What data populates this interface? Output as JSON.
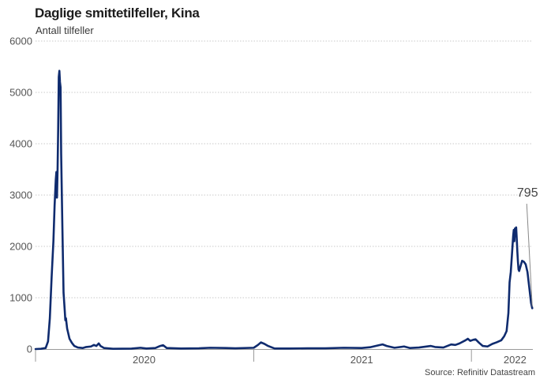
{
  "chart_data": {
    "type": "line",
    "title": "Daglige smittetilfeller, Kina",
    "subtitle": "Antall tilfeller",
    "source": "Source: Refinitiv Datastream",
    "ylim": [
      0,
      6000
    ],
    "yticks": [
      "0",
      "1000",
      "2000",
      "3000",
      "4000",
      "5000",
      "6000"
    ],
    "xticks": [
      {
        "date": "2020-01-01",
        "label": "",
        "major": true
      },
      {
        "date": "2020-07-01",
        "label": "2020",
        "major": false
      },
      {
        "date": "2021-01-01",
        "label": "",
        "major": true
      },
      {
        "date": "2021-07-01",
        "label": "2021",
        "major": false
      },
      {
        "date": "2022-01-01",
        "label": "",
        "major": true
      },
      {
        "date": "2022-03-15",
        "label": "2022",
        "major": false
      }
    ],
    "xlim": [
      "2020-01-01",
      "2022-04-14"
    ],
    "grid": true,
    "line_color": "#0f2b6e",
    "annotation": {
      "date": "2022-04-13",
      "value": 795,
      "label": "795"
    },
    "series": [
      {
        "points": [
          [
            "2020-01-01",
            0
          ],
          [
            "2020-01-10",
            5
          ],
          [
            "2020-01-18",
            20
          ],
          [
            "2020-01-22",
            150
          ],
          [
            "2020-01-25",
            600
          ],
          [
            "2020-01-28",
            1400
          ],
          [
            "2020-01-31",
            2100
          ],
          [
            "2020-02-02",
            2800
          ],
          [
            "2020-02-04",
            3300
          ],
          [
            "2020-02-05",
            3450
          ],
          [
            "2020-02-06",
            2950
          ],
          [
            "2020-02-07",
            3500
          ],
          [
            "2020-02-08",
            4300
          ],
          [
            "2020-02-09",
            5300
          ],
          [
            "2020-02-10",
            5420
          ],
          [
            "2020-02-11",
            5200
          ],
          [
            "2020-02-12",
            5100
          ],
          [
            "2020-02-13",
            3800
          ],
          [
            "2020-02-15",
            2400
          ],
          [
            "2020-02-17",
            1100
          ],
          [
            "2020-02-19",
            750
          ],
          [
            "2020-02-20",
            560
          ],
          [
            "2020-02-21",
            600
          ],
          [
            "2020-02-23",
            400
          ],
          [
            "2020-02-25",
            300
          ],
          [
            "2020-02-27",
            200
          ],
          [
            "2020-03-02",
            120
          ],
          [
            "2020-03-06",
            60
          ],
          [
            "2020-03-12",
            30
          ],
          [
            "2020-03-20",
            20
          ],
          [
            "2020-03-26",
            40
          ],
          [
            "2020-04-03",
            50
          ],
          [
            "2020-04-08",
            80
          ],
          [
            "2020-04-12",
            60
          ],
          [
            "2020-04-16",
            110
          ],
          [
            "2020-04-19",
            60
          ],
          [
            "2020-04-25",
            20
          ],
          [
            "2020-05-10",
            5
          ],
          [
            "2020-06-10",
            8
          ],
          [
            "2020-06-25",
            25
          ],
          [
            "2020-07-05",
            10
          ],
          [
            "2020-07-20",
            20
          ],
          [
            "2020-07-28",
            60
          ],
          [
            "2020-08-02",
            75
          ],
          [
            "2020-08-08",
            20
          ],
          [
            "2020-09-01",
            10
          ],
          [
            "2020-10-01",
            15
          ],
          [
            "2020-10-20",
            25
          ],
          [
            "2020-11-15",
            20
          ],
          [
            "2020-12-01",
            15
          ],
          [
            "2021-01-01",
            25
          ],
          [
            "2021-01-08",
            80
          ],
          [
            "2021-01-13",
            130
          ],
          [
            "2021-01-19",
            100
          ],
          [
            "2021-01-25",
            60
          ],
          [
            "2021-02-05",
            10
          ],
          [
            "2021-03-01",
            10
          ],
          [
            "2021-04-01",
            15
          ],
          [
            "2021-05-01",
            15
          ],
          [
            "2021-06-01",
            25
          ],
          [
            "2021-07-01",
            20
          ],
          [
            "2021-07-15",
            35
          ],
          [
            "2021-07-30",
            75
          ],
          [
            "2021-08-05",
            90
          ],
          [
            "2021-08-12",
            60
          ],
          [
            "2021-08-25",
            25
          ],
          [
            "2021-09-10",
            50
          ],
          [
            "2021-09-20",
            20
          ],
          [
            "2021-10-05",
            30
          ],
          [
            "2021-10-25",
            60
          ],
          [
            "2021-11-01",
            40
          ],
          [
            "2021-11-15",
            30
          ],
          [
            "2021-11-28",
            90
          ],
          [
            "2021-12-05",
            80
          ],
          [
            "2021-12-12",
            110
          ],
          [
            "2021-12-22",
            170
          ],
          [
            "2021-12-26",
            200
          ],
          [
            "2021-12-30",
            160
          ],
          [
            "2022-01-04",
            180
          ],
          [
            "2022-01-08",
            190
          ],
          [
            "2022-01-14",
            120
          ],
          [
            "2022-01-20",
            60
          ],
          [
            "2022-01-28",
            50
          ],
          [
            "2022-02-05",
            100
          ],
          [
            "2022-02-12",
            130
          ],
          [
            "2022-02-20",
            170
          ],
          [
            "2022-02-25",
            250
          ],
          [
            "2022-03-01",
            350
          ],
          [
            "2022-03-04",
            700
          ],
          [
            "2022-03-06",
            1300
          ],
          [
            "2022-03-08",
            1500
          ],
          [
            "2022-03-10",
            1850
          ],
          [
            "2022-03-12",
            2200
          ],
          [
            "2022-03-13",
            2320
          ],
          [
            "2022-03-14",
            2100
          ],
          [
            "2022-03-15",
            2350
          ],
          [
            "2022-03-16",
            2200
          ],
          [
            "2022-03-17",
            2370
          ],
          [
            "2022-03-18",
            2150
          ],
          [
            "2022-03-19",
            1900
          ],
          [
            "2022-03-20",
            1700
          ],
          [
            "2022-03-21",
            1550
          ],
          [
            "2022-03-22",
            1520
          ],
          [
            "2022-03-24",
            1600
          ],
          [
            "2022-03-27",
            1720
          ],
          [
            "2022-03-30",
            1700
          ],
          [
            "2022-04-02",
            1650
          ],
          [
            "2022-04-05",
            1500
          ],
          [
            "2022-04-08",
            1200
          ],
          [
            "2022-04-11",
            900
          ],
          [
            "2022-04-13",
            795
          ]
        ]
      }
    ]
  }
}
